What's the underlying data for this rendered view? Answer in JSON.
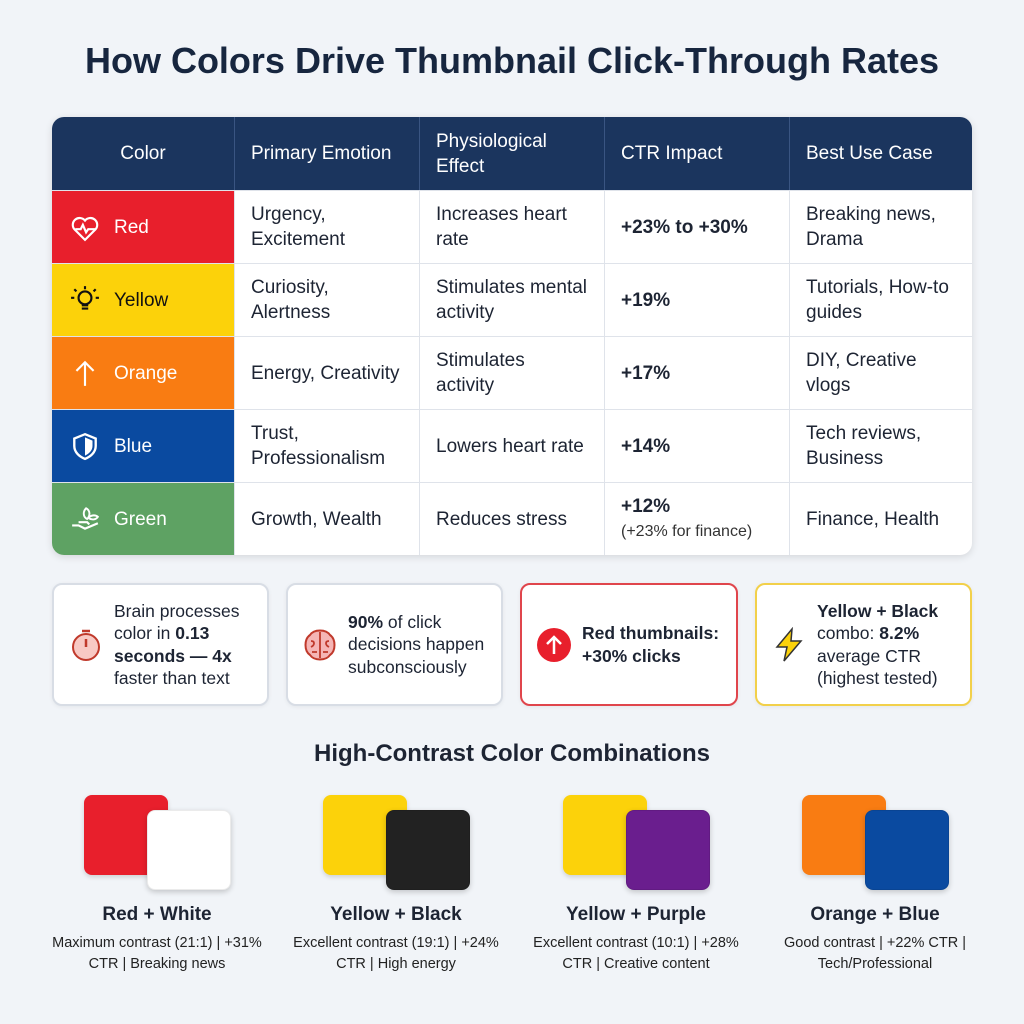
{
  "title": "How Colors Drive Thumbnail Click-Through Rates",
  "table": {
    "header": [
      "Color",
      "Primary Emotion",
      "Physiological Effect",
      "CTR Impact",
      "Best Use Case"
    ],
    "rows": [
      {
        "color": "Red",
        "fill": "#e81f2c",
        "label_color": "#ffffff",
        "emotion": "Urgency, Excitement",
        "effect": "Increases heart rate",
        "ctr": "+23% to +30%",
        "use": "Breaking news, Drama"
      },
      {
        "color": "Yellow",
        "fill": "#fcd20a",
        "label_color": "#111111",
        "emotion": "Curiosity, Alertness",
        "effect": "Stimulates mental activity",
        "ctr": "+19%",
        "use": "Tutorials, How-to guides"
      },
      {
        "color": "Orange",
        "fill": "#f97c12",
        "label_color": "#ffffff",
        "emotion": "Energy, Creativity",
        "effect": "Stimulates activity",
        "ctr": "+17%",
        "use": "DIY, Creative vlogs"
      },
      {
        "color": "Blue",
        "fill": "#0a4aa0",
        "label_color": "#ffffff",
        "emotion": "Trust, Professionalism",
        "effect": "Lowers heart rate",
        "ctr": "+14%",
        "use": "Tech reviews, Business"
      },
      {
        "color": "Green",
        "fill": "#5ea263",
        "label_color": "#ffffff",
        "emotion": "Growth, Wealth",
        "effect": "Reduces stress",
        "ctr": "+12%",
        "ctr_note": "(+23% for finance)",
        "use": "Finance, Health"
      }
    ]
  },
  "stats": [
    {
      "border_color": "#d8dde5",
      "segments": [
        {
          "text": "Brain processes color in ",
          "bold": false
        },
        {
          "text": "0.13 seconds — 4x",
          "bold": true
        },
        {
          "text": " faster than text",
          "bold": false
        }
      ]
    },
    {
      "border_color": "#d8dde5",
      "segments": [
        {
          "text": "90%",
          "bold": true
        },
        {
          "text": " of click decisions happen subconsciously",
          "bold": false
        }
      ]
    },
    {
      "border_color": "#e0454c",
      "segments": [
        {
          "text": "Red thumbnails: +30% clicks",
          "bold": true
        }
      ]
    },
    {
      "border_color": "#f2d04a",
      "segments": [
        {
          "text": "Yellow + Black",
          "bold": true
        },
        {
          "text": " combo: ",
          "bold": false
        },
        {
          "text": "8.2%",
          "bold": true
        },
        {
          "text": " average CTR (highest tested)",
          "bold": false
        }
      ]
    }
  ],
  "combos_title": "High-Contrast Color Combinations",
  "combos": [
    {
      "name": "Red + White",
      "colors": [
        "#e81f2c",
        "#ffffff"
      ],
      "description": "Maximum contrast (21:1) | +31% CTR | Breaking news"
    },
    {
      "name": "Yellow + Black",
      "colors": [
        "#fcd20a",
        "#222222"
      ],
      "description": "Excellent contrast (19:1) | +24% CTR | High energy"
    },
    {
      "name": "Yellow + Purple",
      "colors": [
        "#fcd20a",
        "#6a1e8e"
      ],
      "description": "Excellent contrast (10:1) | +28% CTR | Creative content"
    },
    {
      "name": "Orange + Blue",
      "colors": [
        "#f97c12",
        "#0a4aa0"
      ],
      "description": "Good contrast | +22% CTR | Tech/Professional"
    }
  ]
}
